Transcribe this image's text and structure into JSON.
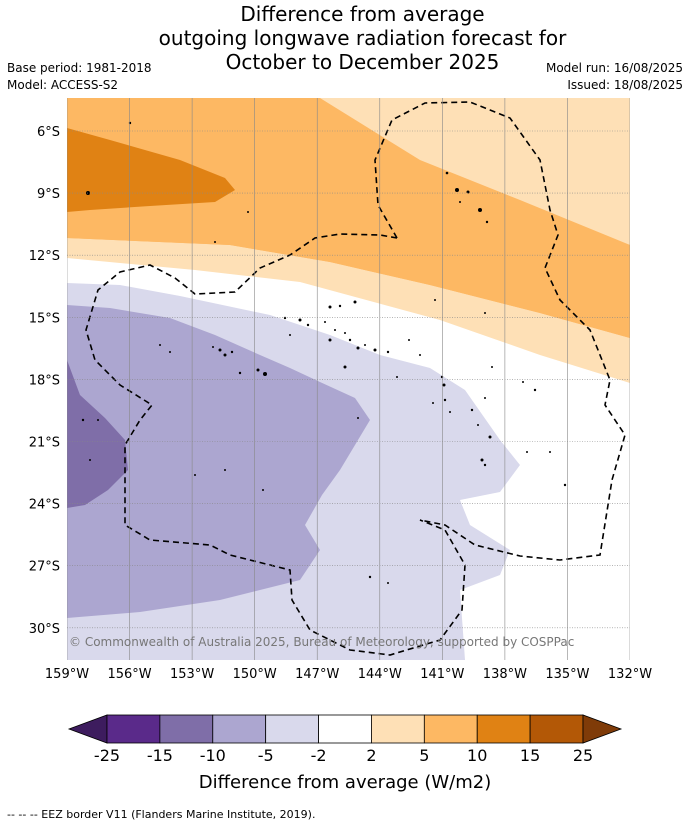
{
  "title": {
    "line1": "Difference from average",
    "line2": "outgoing longwave radiation forecast for",
    "line3": "October to December 2025"
  },
  "meta": {
    "base_period": "Base period: 1981-2018",
    "model": "Model: ACCESS-S2",
    "model_run": "Model run: 16/08/2025",
    "issued": "Issued: 18/08/2025"
  },
  "map": {
    "lat_labels": [
      "6°S",
      "9°S",
      "12°S",
      "15°S",
      "18°S",
      "21°S",
      "24°S",
      "27°S",
      "30°S"
    ],
    "lon_labels": [
      "159°W",
      "156°W",
      "153°W",
      "150°W",
      "147°W",
      "144°W",
      "141°W",
      "138°W",
      "135°W",
      "132°W"
    ],
    "credit": "© Commonwealth of Australia 2025, Bureau of Meteorology, supported by COSPPac"
  },
  "colorbar": {
    "ticks": [
      "-25",
      "-15",
      "-10",
      "-5",
      "-2",
      "2",
      "5",
      "10",
      "15",
      "25"
    ],
    "colors": [
      "#3d1c5e",
      "#5a2a8a",
      "#7f6ea8",
      "#aca6d0",
      "#d9d9ec",
      "#ffffff",
      "#fee0b6",
      "#fdb863",
      "#e08214",
      "#b35806",
      "#7f3b08"
    ],
    "title": "Difference from average (W/m2)"
  },
  "footer": {
    "legend": "-- -- -- EEZ border V11 (Flanders Marine Institute, 2019)."
  }
}
